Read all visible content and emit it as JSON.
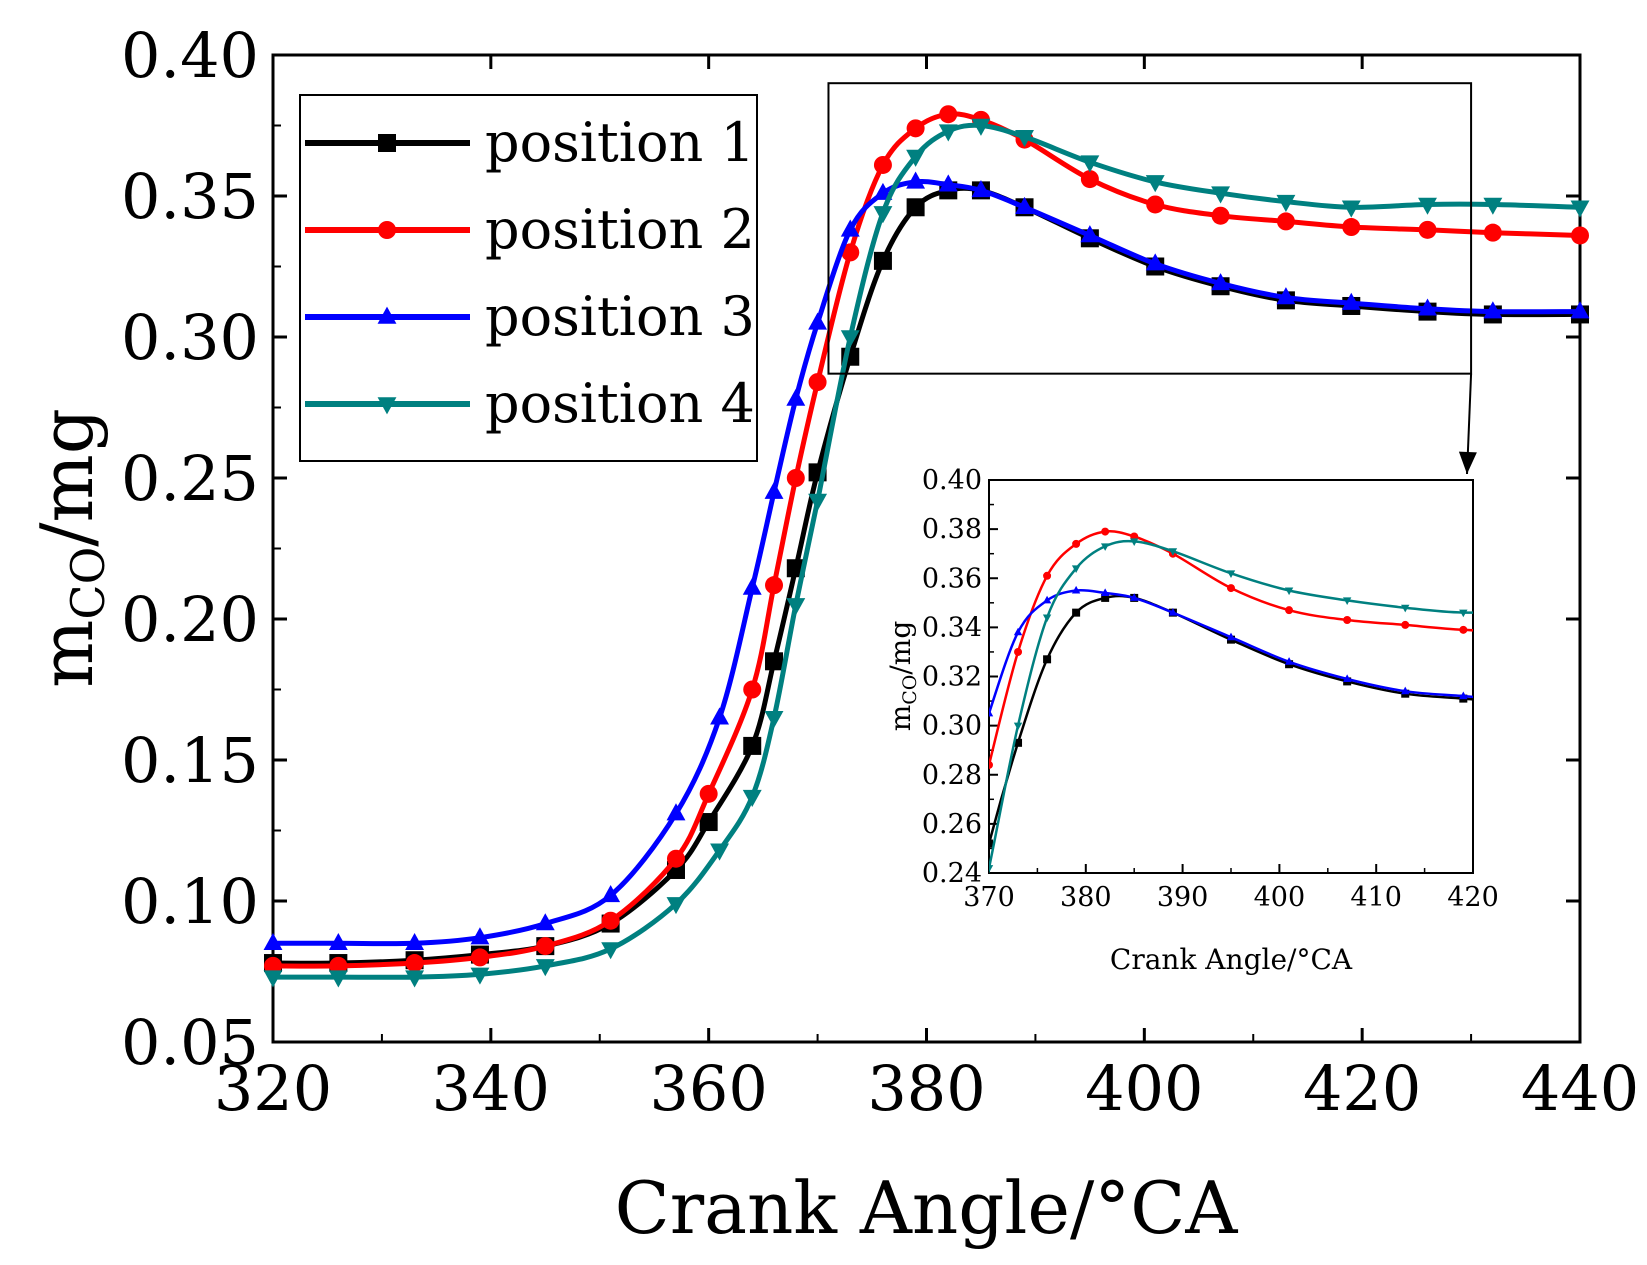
{
  "chart_data": [
    {
      "type": "line",
      "x_label_prefix": "m",
      "y_label_sub": "CO",
      "y_label_suffix": "/mg",
      "xlabel": "Crank Angle/°CA",
      "xlim": [
        320,
        440
      ],
      "ylim": [
        0.05,
        0.4
      ],
      "x_ticks": [
        "320",
        "340",
        "360",
        "380",
        "400",
        "420",
        "440"
      ],
      "y_ticks": [
        "0.05",
        "0.10",
        "0.15",
        "0.20",
        "0.25",
        "0.30",
        "0.35",
        "0.40"
      ],
      "legend_position": "top-left",
      "grid": false,
      "series": [
        {
          "name": "position 1",
          "color": "#000000",
          "marker": "square",
          "x": [
            320,
            326,
            333,
            339,
            345,
            351,
            357,
            360,
            364,
            366,
            368,
            370,
            373,
            376,
            379,
            382,
            385,
            389,
            395,
            401,
            407,
            413,
            419,
            426,
            432,
            440
          ],
          "y": [
            0.078,
            0.078,
            0.079,
            0.081,
            0.084,
            0.092,
            0.111,
            0.128,
            0.155,
            0.185,
            0.218,
            0.252,
            0.293,
            0.327,
            0.346,
            0.352,
            0.352,
            0.346,
            0.335,
            0.325,
            0.318,
            0.313,
            0.311,
            0.309,
            0.308,
            0.308
          ]
        },
        {
          "name": "position 2",
          "color": "#ff0000",
          "marker": "circle",
          "x": [
            320,
            326,
            333,
            339,
            345,
            351,
            357,
            360,
            364,
            366,
            368,
            370,
            373,
            376,
            379,
            382,
            385,
            389,
            395,
            401,
            407,
            413,
            419,
            426,
            432,
            440
          ],
          "y": [
            0.077,
            0.077,
            0.078,
            0.08,
            0.084,
            0.093,
            0.115,
            0.138,
            0.175,
            0.212,
            0.25,
            0.284,
            0.33,
            0.361,
            0.374,
            0.379,
            0.377,
            0.37,
            0.356,
            0.347,
            0.343,
            0.341,
            0.339,
            0.338,
            0.337,
            0.336
          ]
        },
        {
          "name": "position 3",
          "color": "#0000ff",
          "marker": "triangle-up",
          "x": [
            320,
            326,
            333,
            339,
            345,
            351,
            357,
            361,
            364,
            366,
            368,
            370,
            373,
            376,
            379,
            382,
            385,
            389,
            395,
            401,
            407,
            413,
            419,
            426,
            432,
            440
          ],
          "y": [
            0.085,
            0.085,
            0.085,
            0.087,
            0.092,
            0.102,
            0.131,
            0.165,
            0.211,
            0.245,
            0.278,
            0.305,
            0.338,
            0.351,
            0.355,
            0.354,
            0.352,
            0.346,
            0.336,
            0.326,
            0.319,
            0.314,
            0.312,
            0.31,
            0.309,
            0.309
          ]
        },
        {
          "name": "position 4",
          "color": "#008080",
          "marker": "triangle-down",
          "x": [
            320,
            326,
            333,
            339,
            345,
            351,
            357,
            361,
            364,
            366,
            368,
            370,
            373,
            376,
            379,
            382,
            385,
            389,
            395,
            401,
            407,
            413,
            419,
            426,
            432,
            440
          ],
          "y": [
            0.073,
            0.073,
            0.073,
            0.074,
            0.077,
            0.083,
            0.099,
            0.118,
            0.137,
            0.165,
            0.205,
            0.242,
            0.3,
            0.344,
            0.364,
            0.373,
            0.375,
            0.371,
            0.362,
            0.355,
            0.351,
            0.348,
            0.346,
            0.347,
            0.347,
            0.346
          ]
        }
      ]
    },
    {
      "type": "line",
      "role": "inset-zoom",
      "xlabel": "Crank Angle/°CA",
      "xlim": [
        370,
        420
      ],
      "ylim": [
        0.24,
        0.4
      ],
      "x_ticks": [
        "370",
        "380",
        "390",
        "400",
        "410",
        "420"
      ],
      "y_ticks": [
        "0.24",
        "0.26",
        "0.28",
        "0.30",
        "0.32",
        "0.34",
        "0.36",
        "0.38",
        "0.40"
      ],
      "zoom_region_x": [
        371,
        430
      ],
      "zoom_region_y": [
        0.287,
        0.39
      ]
    }
  ]
}
